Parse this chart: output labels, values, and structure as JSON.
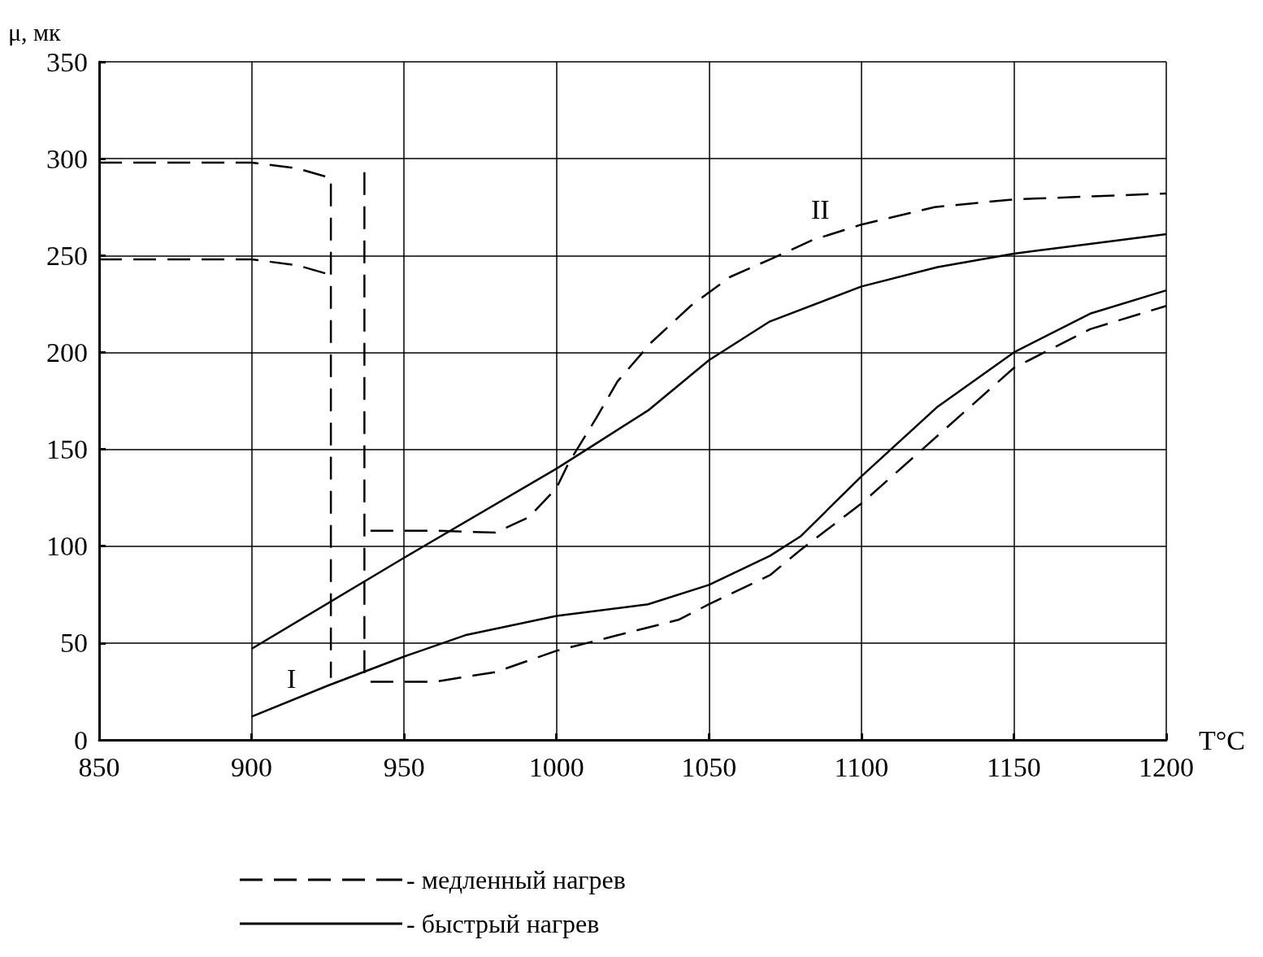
{
  "chart_data": {
    "type": "line",
    "xlabel": "T°C",
    "ylabel": "μ, мк",
    "xlim": [
      850,
      1200
    ],
    "xticks": [
      850,
      900,
      950,
      1000,
      1050,
      1100,
      1150,
      1200
    ],
    "ylim": [
      0,
      350
    ],
    "yticks": [
      0,
      50,
      100,
      150,
      200,
      250,
      300,
      350
    ],
    "grid": true,
    "legend": "bottom",
    "marker": "none",
    "annotations": [
      "I",
      "II"
    ],
    "series": [
      {
        "name": "- медленный нагрев",
        "color": "#000000",
        "line_style": "dashed",
        "x": [
          850,
          900,
          915,
          926,
          926,
          null,
          850,
          900,
          915,
          926,
          null,
          937,
          937,
          null,
          939,
          960,
          980,
          991,
          1000,
          1004,
          1013,
          1020,
          1031,
          1044,
          1057,
          1070,
          1084,
          1100,
          1124,
          1150,
          1200,
          null,
          939,
          960,
          980,
          1000,
          1020,
          1040,
          1050,
          1070,
          1080,
          1100,
          1120,
          1150,
          1175,
          1200
        ],
        "values": [
          298,
          298,
          295,
          290,
          32,
          null,
          248,
          248,
          245,
          240,
          null,
          293,
          33,
          null,
          108,
          108,
          107,
          115,
          130,
          143,
          166,
          185,
          205,
          224,
          239,
          248,
          258,
          266,
          275,
          279,
          282,
          null,
          30,
          30,
          35,
          46,
          54,
          62,
          70,
          85,
          98,
          122,
          150,
          192,
          212,
          224
        ]
      },
      {
        "name": "- быстрый нагрев",
        "color": "#000000",
        "line_style": "solid",
        "x": [
          900,
          950,
          1000,
          1010,
          1030,
          1050,
          1070,
          1100,
          1125,
          1150,
          1175,
          1200,
          null,
          900,
          925,
          950,
          970,
          1000,
          1030,
          1050,
          1070,
          1080,
          1100,
          1125,
          1150,
          1175,
          1200
        ],
        "values": [
          47,
          94,
          140,
          150,
          170,
          196,
          216,
          234,
          244,
          251,
          256,
          261,
          null,
          12,
          28,
          43,
          54,
          64,
          70,
          80,
          95,
          105,
          136,
          172,
          200,
          220,
          232
        ]
      }
    ]
  }
}
